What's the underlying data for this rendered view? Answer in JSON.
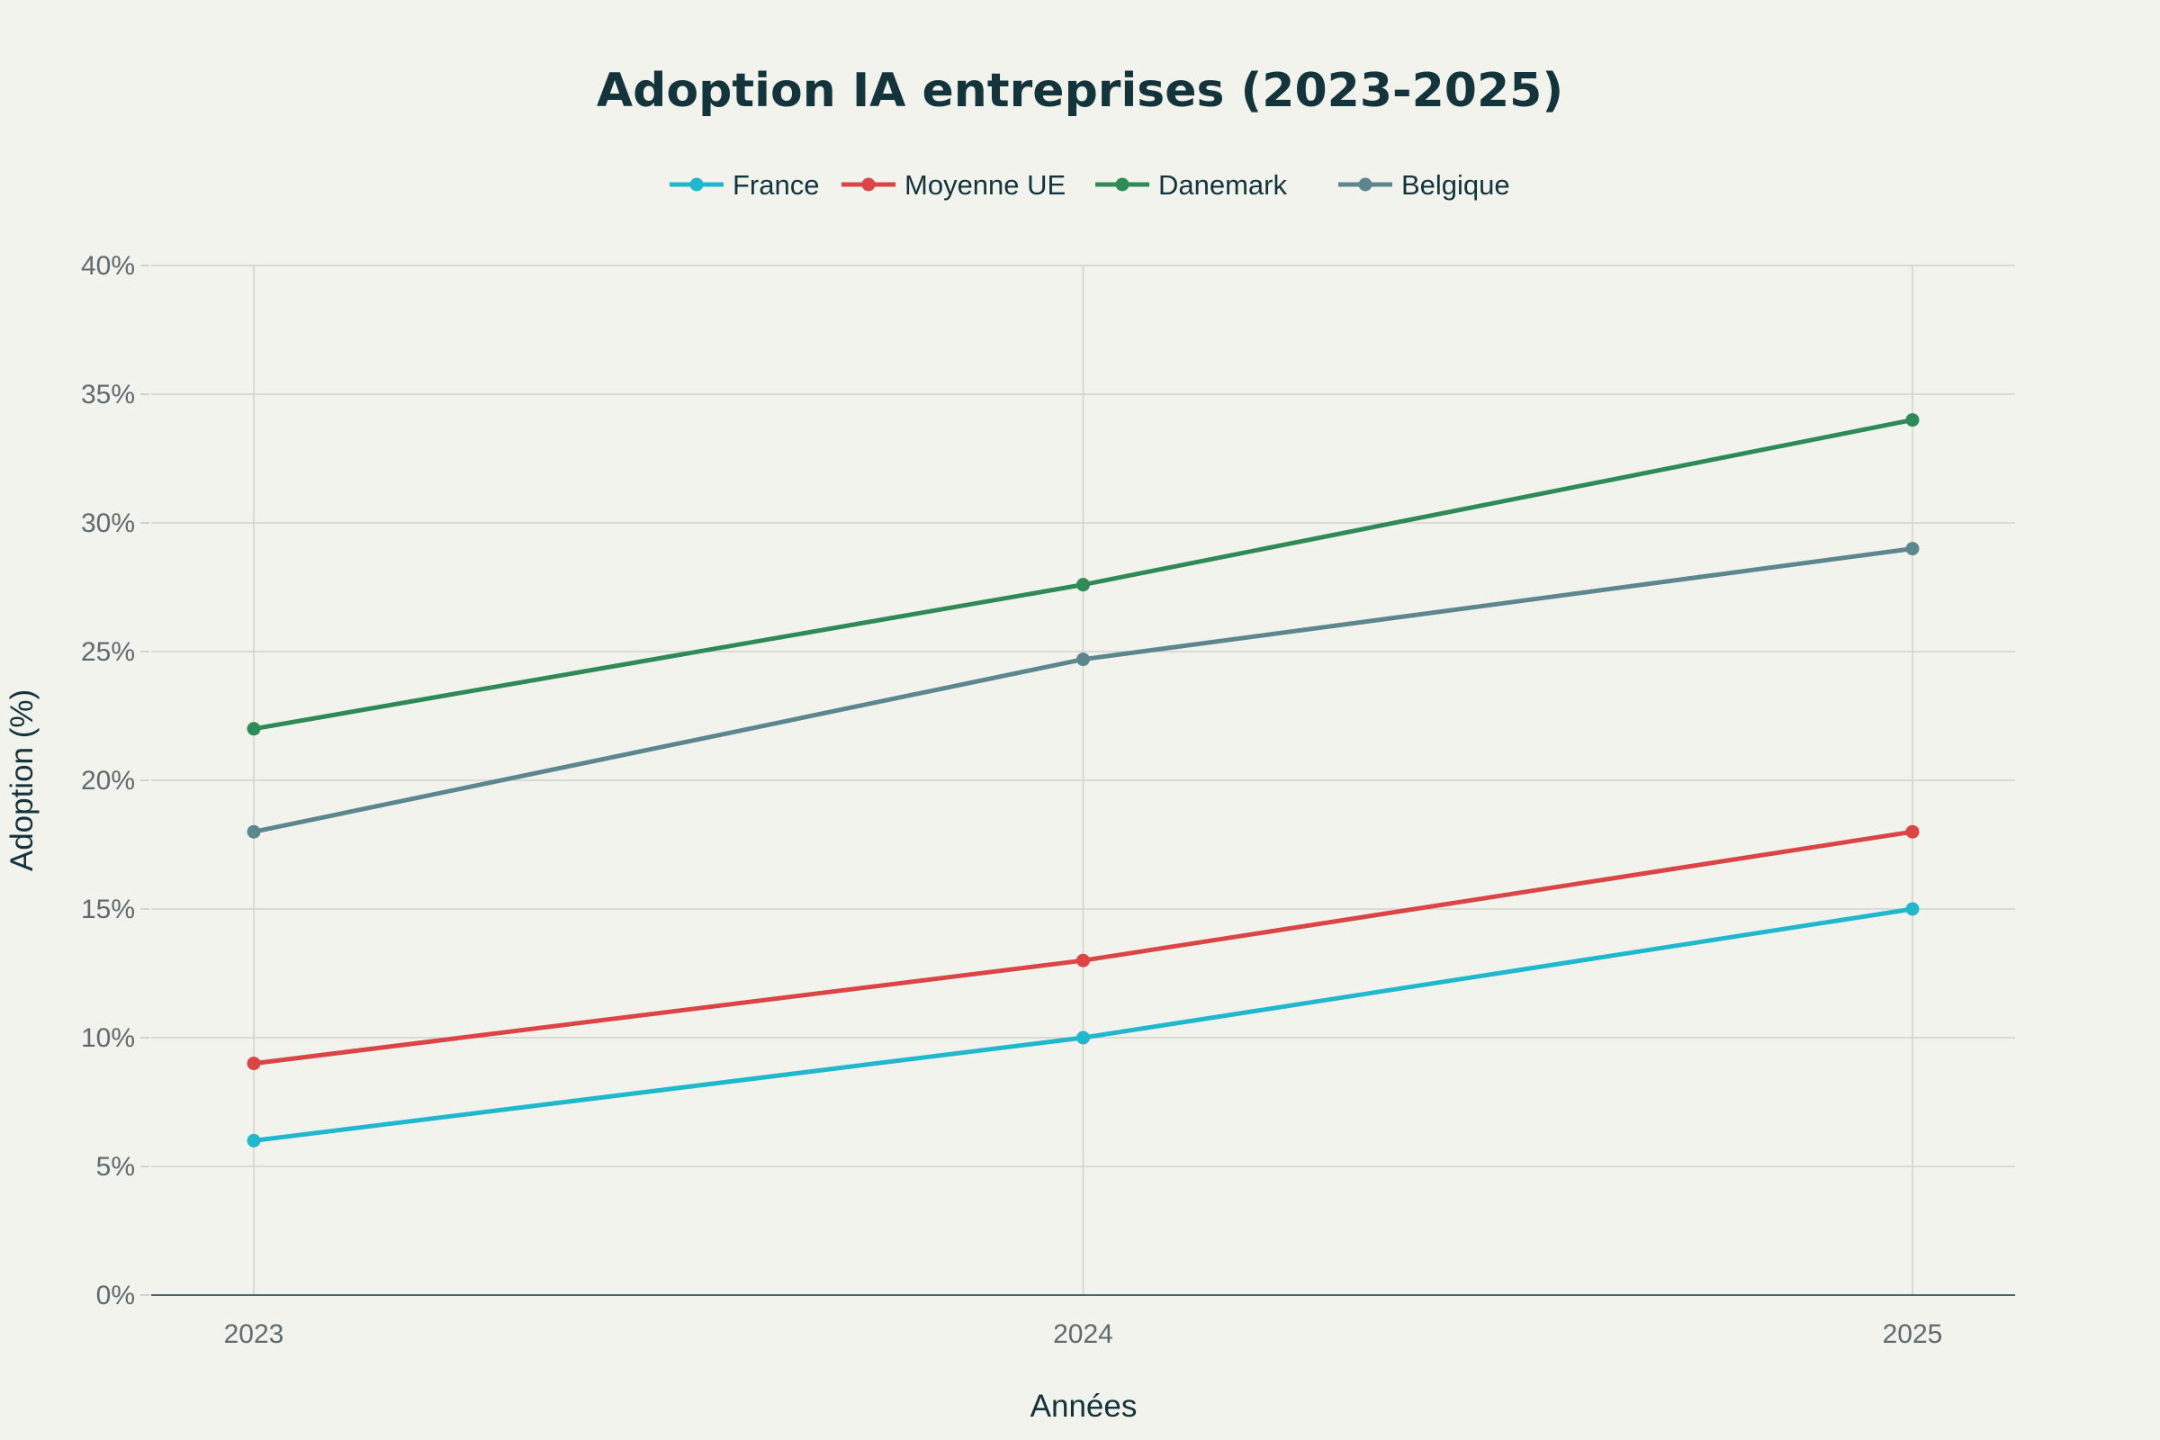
{
  "chart_data": {
    "type": "line",
    "title": "Adoption IA entreprises (2023-2025)",
    "xlabel": "Années",
    "ylabel": "Adoption (%)",
    "x": [
      "2023",
      "2024",
      "2025"
    ],
    "ylim": [
      0,
      40
    ],
    "yticks": [
      "0%",
      "5%",
      "10%",
      "15%",
      "20%",
      "25%",
      "30%",
      "35%",
      "40%"
    ],
    "grid": true,
    "legend_position": "top-center",
    "series": [
      {
        "name": "France",
        "color": "#1fb8cd",
        "values": [
          6,
          10,
          15
        ]
      },
      {
        "name": "Moyenne UE",
        "color": "#db4545",
        "values": [
          9,
          13,
          18
        ]
      },
      {
        "name": "Danemark",
        "color": "#2e8b57",
        "values": [
          22,
          27.6,
          34
        ]
      },
      {
        "name": "Belgique",
        "color": "#5d878f",
        "values": [
          18,
          24.7,
          29
        ]
      }
    ]
  }
}
